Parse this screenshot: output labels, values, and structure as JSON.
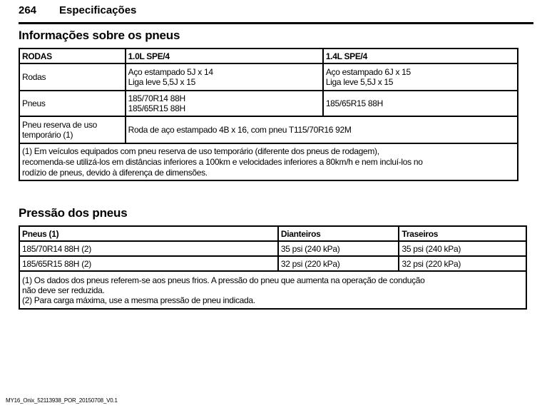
{
  "header": {
    "page_number": "264",
    "chapter": "Especificações"
  },
  "tire_info": {
    "title": "Informações sobre os pneus",
    "columns": [
      "RODAS",
      "1.0L SPE/4",
      "1.4L SPE/4"
    ],
    "rows": [
      {
        "label": "Rodas",
        "c1": [
          "Aço estampado 5J x 14",
          "Liga leve 5,5J x 15"
        ],
        "c2": [
          "Aço estampado 6J x 15",
          "Liga leve 5,5J x 15"
        ]
      },
      {
        "label": "Pneus",
        "c1": [
          "185/70R14 88H",
          "185/65R15 88H"
        ],
        "c2": [
          "185/65R15 88H"
        ]
      },
      {
        "label": [
          "Pneu reserva de uso",
          "temporário (1)"
        ],
        "value": "Roda de aço estampado 4B x 16, com pneu T115/70R16 92M"
      }
    ],
    "note": [
      "(1) Em veículos equipados com pneu reserva de uso temporário (diferente dos pneus de rodagem),",
      "recomenda-se utilizá-los em distâncias inferiores a 100km e velocidades inferiores a 80km/h e nem incluí-los no",
      "rodízio de pneus, devido à diferença de dimensões."
    ]
  },
  "pressure": {
    "title": "Pressão dos pneus",
    "columns": [
      "Pneus (1)",
      "Dianteiros",
      "Traseiros"
    ],
    "rows": [
      [
        "185/70R14 88H (2)",
        "35 psi (240 kPa)",
        "35 psi (240 kPa)"
      ],
      [
        "185/65R15 88H (2)",
        "32 psi (220 kPa)",
        "32 psi (220 kPa)"
      ]
    ],
    "note": [
      "(1) Os dados dos pneus referem-se aos pneus frios. A pressão do pneu que aumenta na operação de condução",
      "não deve ser reduzida.",
      "(2) Para carga máxima, use a mesma pressão de pneu indicada."
    ]
  },
  "footer": "MY16_Onix_52113938_POR_20150708_V0.1"
}
